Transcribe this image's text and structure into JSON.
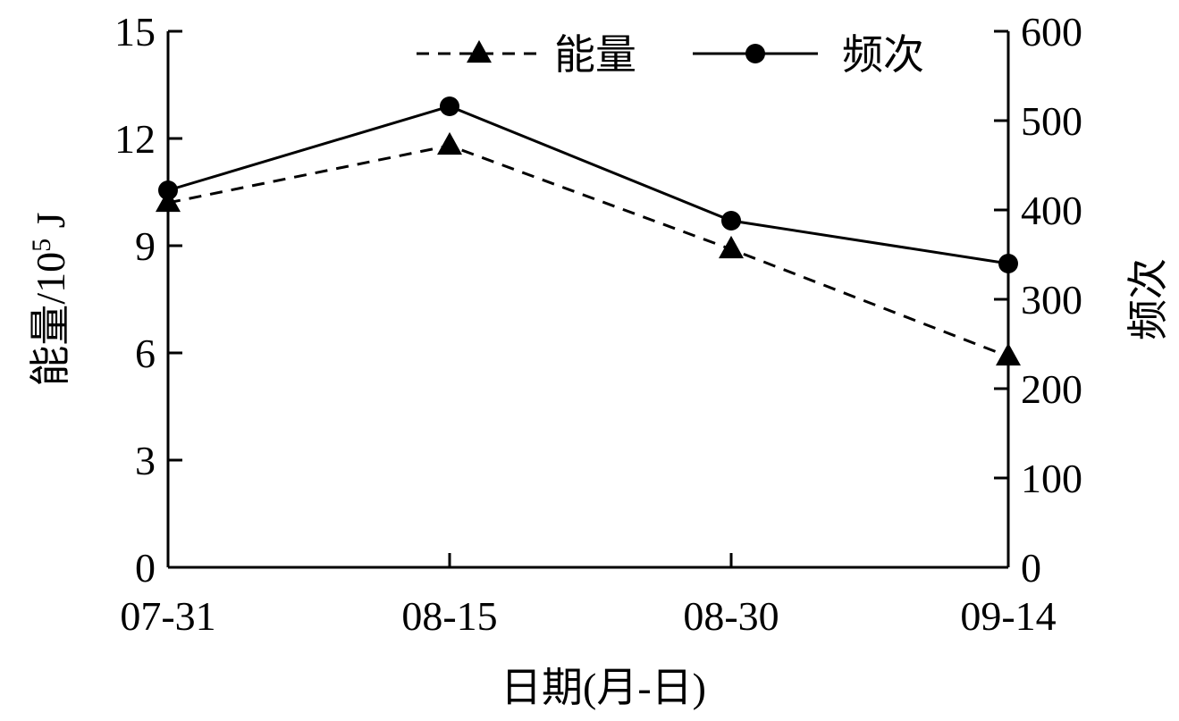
{
  "chart_data": {
    "type": "line",
    "categories": [
      "07-31",
      "08-15",
      "08-30",
      "09-14"
    ],
    "xlabel": "日期(月-日)",
    "ylabel_left": {
      "prefix": "能量/10",
      "sup": "5",
      "suffix": " J"
    },
    "ylabel_right": "频次",
    "ylim_left": [
      0,
      15
    ],
    "ylim_right": [
      0,
      600
    ],
    "yticks_left": [
      "0",
      "3",
      "6",
      "9",
      "12",
      "15"
    ],
    "yticks_right": [
      "0",
      "100",
      "200",
      "300",
      "400",
      "500",
      "600"
    ],
    "grid": false,
    "legend_position": "top",
    "series": [
      {
        "name": "能量",
        "axis": "left",
        "style": "dashed",
        "marker": "triangle",
        "values": [
          10.2,
          11.8,
          8.9,
          5.9
        ]
      },
      {
        "name": "频次",
        "axis": "right",
        "style": "solid",
        "marker": "circle",
        "values": [
          422,
          516,
          388,
          340
        ]
      }
    ],
    "colors": {
      "line": "#000000"
    }
  }
}
